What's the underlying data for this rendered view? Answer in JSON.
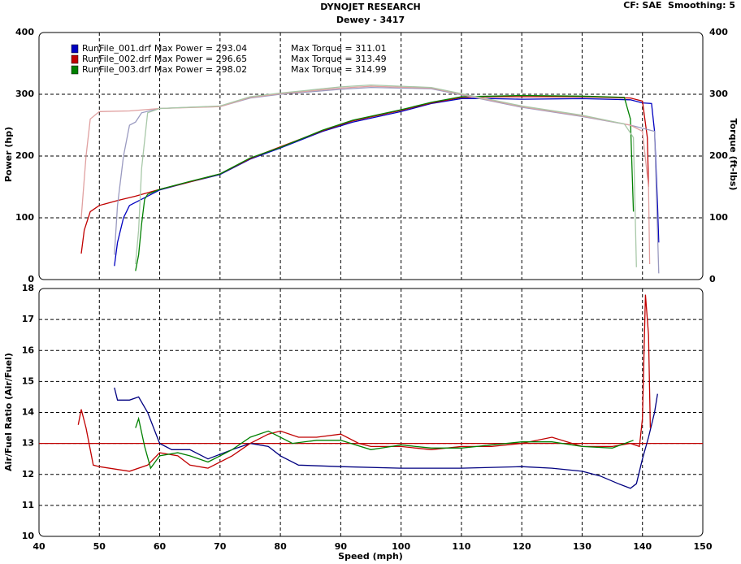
{
  "chart_data": [
    {
      "type": "line",
      "title": "DYNOJET RESEARCH",
      "subtitle": "Dewey - 3417",
      "annotation": "CF: SAE  Smoothing: 5",
      "y_label": "Power (hp)",
      "y2_label": "Torque (ft-lbs)",
      "xlim": [
        40,
        150
      ],
      "ylim": [
        0,
        400
      ],
      "yticks": [
        0,
        100,
        200,
        300,
        400
      ],
      "y2lim": [
        0,
        400
      ],
      "y2ticks": [
        0,
        100,
        200,
        300,
        400
      ],
      "grid": true,
      "legend": "upper left",
      "series": [
        {
          "name": "RunFile_001.drf",
          "label": "Max Power = 293.04",
          "color": "#0000c0",
          "x": [
            52.5,
            53,
            54,
            55,
            57,
            60,
            65,
            70,
            75,
            80,
            87,
            92,
            100,
            105,
            110,
            115,
            120,
            130,
            138,
            140,
            141.5,
            142,
            142.5,
            142.7
          ],
          "values": [
            22,
            60,
            100,
            120,
            130,
            145,
            158,
            170,
            195,
            213,
            240,
            255,
            272,
            285,
            293,
            293,
            292,
            293,
            291,
            286,
            285,
            240,
            120,
            60
          ]
        },
        {
          "name": "RunFile_002.drf",
          "label": "Max Power = 296.65",
          "color": "#c00000",
          "x": [
            47,
            47.5,
            48.5,
            50,
            53,
            56,
            60,
            65,
            70,
            75,
            80,
            87,
            92,
            100,
            105,
            110,
            115,
            120,
            130,
            138,
            140,
            140.8,
            141
          ],
          "values": [
            42,
            80,
            110,
            120,
            128,
            135,
            146,
            158,
            171,
            196,
            215,
            241,
            257,
            274,
            286,
            295,
            296,
            296,
            296,
            294,
            289,
            230,
            150
          ]
        },
        {
          "name": "RunFile_003.drf",
          "label": "Max Power = 298.02",
          "color": "#008000",
          "x": [
            56,
            56.5,
            57,
            57.5,
            58,
            60,
            65,
            70,
            75,
            80,
            87,
            92,
            100,
            105,
            110,
            115,
            120,
            130,
            137,
            138,
            138.5
          ],
          "values": [
            14,
            40,
            90,
            130,
            138,
            146,
            159,
            171,
            197,
            214,
            242,
            258,
            275,
            287,
            296,
            297,
            298,
            297,
            295,
            260,
            110
          ]
        },
        {
          "label": "Max Torque = 311.01",
          "color": "#9a9ac0",
          "axis": "y2",
          "x": [
            52.5,
            53,
            54,
            55,
            56,
            57,
            60,
            65,
            70,
            75,
            80,
            90,
            95,
            105,
            110,
            115,
            120,
            130,
            138,
            140,
            142,
            142.7
          ],
          "values": [
            40,
            120,
            200,
            250,
            255,
            270,
            277,
            279,
            280,
            294,
            300,
            308,
            311,
            309,
            299,
            289,
            279,
            264,
            250,
            245,
            240,
            10
          ]
        },
        {
          "label": "Max Torque = 313.49",
          "color": "#e0a0a0",
          "axis": "y2",
          "x": [
            47,
            47.8,
            48.5,
            50,
            55,
            60,
            70,
            75,
            80,
            90,
            95,
            105,
            110,
            115,
            120,
            130,
            138,
            140,
            141,
            141.2
          ],
          "values": [
            100,
            200,
            260,
            272,
            273,
            277,
            280,
            295,
            301,
            310,
            313,
            310,
            300,
            290,
            280,
            265,
            250,
            240,
            150,
            25
          ]
        },
        {
          "label": "Max Torque = 314.99",
          "color": "#a8c8a8",
          "axis": "y2",
          "x": [
            56,
            56.5,
            57,
            58,
            60,
            70,
            75,
            80,
            90,
            95,
            105,
            110,
            115,
            120,
            130,
            137,
            138.5,
            139
          ],
          "values": [
            25,
            80,
            180,
            270,
            277,
            281,
            296,
            302,
            312,
            315,
            311,
            301,
            291,
            281,
            266,
            252,
            230,
            20
          ]
        }
      ]
    },
    {
      "type": "line",
      "y_label": "Air/Fuel Ratio (Air/Fuel)",
      "x_label": "Speed (mph)",
      "xlim": [
        40,
        150
      ],
      "xticks": [
        40,
        50,
        60,
        70,
        80,
        90,
        100,
        110,
        120,
        130,
        140,
        150
      ],
      "ylim": [
        10,
        18
      ],
      "yticks": [
        10,
        11,
        12,
        13,
        14,
        15,
        16,
        17,
        18
      ],
      "grid": true,
      "reference_line": {
        "value": 13,
        "color": "#c00000"
      },
      "series": [
        {
          "color": "#000080",
          "x": [
            52.5,
            53,
            55,
            56.5,
            58,
            60,
            62,
            65,
            68,
            72,
            75,
            78,
            80,
            83,
            90,
            100,
            110,
            120,
            125,
            130,
            133,
            136,
            138,
            139,
            140,
            141,
            142,
            142.5
          ],
          "values": [
            14.8,
            14.4,
            14.4,
            14.5,
            14.0,
            13.0,
            12.8,
            12.8,
            12.5,
            12.8,
            13.0,
            12.9,
            12.6,
            12.3,
            12.25,
            12.2,
            12.2,
            12.25,
            12.2,
            12.1,
            11.95,
            11.7,
            11.55,
            11.7,
            12.5,
            13.2,
            14.0,
            14.6
          ]
        },
        {
          "color": "#c00000",
          "x": [
            46.5,
            47,
            47.8,
            49,
            50,
            55,
            58,
            60,
            63,
            65,
            68,
            72,
            75,
            78,
            80,
            83,
            86,
            90,
            93,
            95,
            100,
            105,
            110,
            115,
            120,
            125,
            130,
            135,
            138,
            139.5,
            140,
            140.5,
            141,
            141.3
          ],
          "values": [
            13.6,
            14.1,
            13.5,
            12.3,
            12.25,
            12.1,
            12.3,
            12.7,
            12.6,
            12.3,
            12.2,
            12.6,
            13.0,
            13.3,
            13.4,
            13.2,
            13.2,
            13.3,
            13.0,
            12.9,
            12.9,
            12.8,
            12.9,
            12.9,
            13.0,
            13.2,
            12.9,
            12.9,
            13.0,
            12.9,
            13.8,
            17.8,
            16.5,
            13.5
          ]
        },
        {
          "color": "#008000",
          "x": [
            56,
            56.5,
            57.5,
            58.5,
            60,
            63,
            65,
            68,
            72,
            75,
            78,
            82,
            86,
            90,
            95,
            100,
            105,
            110,
            115,
            120,
            125,
            130,
            135,
            138.5
          ],
          "values": [
            13.5,
            13.8,
            12.9,
            12.2,
            12.6,
            12.7,
            12.6,
            12.4,
            12.8,
            13.2,
            13.4,
            13.0,
            13.1,
            13.1,
            12.8,
            12.95,
            12.85,
            12.85,
            12.95,
            13.05,
            13.05,
            12.9,
            12.85,
            13.1
          ]
        }
      ]
    }
  ]
}
